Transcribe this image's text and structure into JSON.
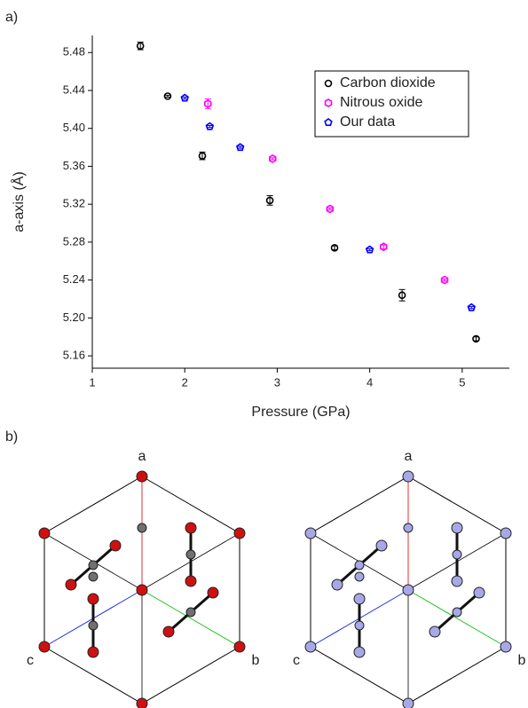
{
  "panel_labels": [
    "a)",
    "b)"
  ],
  "chart_data": {
    "type": "scatter",
    "xlabel": "Pressure (GPa)",
    "ylabel": "a-axis (Å)",
    "xlim": [
      1,
      5.51
    ],
    "xticks": [
      1,
      2,
      3,
      4,
      5
    ],
    "ylim": [
      5.147,
      5.498
    ],
    "yticks": [
      5.16,
      {
        "value": 5.2,
        "label": "5.20"
      },
      5.24,
      5.28,
      5.32,
      5.36,
      {
        "value": 5.4,
        "label": "5.40"
      },
      5.44,
      5.48
    ],
    "legend": "upper right",
    "series": [
      {
        "name": "Carbon dioxide",
        "color": "#000000",
        "marker": "circle",
        "x": [
          1.52,
          1.815,
          2.19,
          2.92,
          3.62,
          4.35,
          5.15
        ],
        "values": [
          5.487,
          5.434,
          5.371,
          5.324,
          5.274,
          5.224,
          5.178
        ],
        "errors": [
          0.004,
          0.001,
          0.004,
          0.005,
          0.002,
          0.006,
          0.002
        ]
      },
      {
        "name": "Nitrous oxide",
        "color": "#ff00ff",
        "marker": "hexagon",
        "x": [
          2.25,
          2.95,
          3.57,
          4.15,
          4.81
        ],
        "values": [
          5.426,
          5.368,
          5.315,
          5.275,
          5.24
        ],
        "errors": [
          0.005,
          0.001,
          0.001,
          0.002,
          0.001
        ]
      },
      {
        "name": "Our data",
        "color": "#0000ff",
        "marker": "pentagon",
        "x": [
          2.0,
          2.27,
          2.6,
          4.0,
          5.1
        ],
        "values": [
          5.432,
          5.402,
          5.38,
          5.272,
          5.211
        ],
        "errors": [
          0.001,
          0.001,
          0.001,
          0.001,
          0.001
        ]
      }
    ]
  },
  "structures": [
    {
      "axis_labels": [
        "a",
        "b",
        "c"
      ]
    },
    {
      "axis_labels": [
        "a",
        "b",
        "c"
      ]
    }
  ]
}
